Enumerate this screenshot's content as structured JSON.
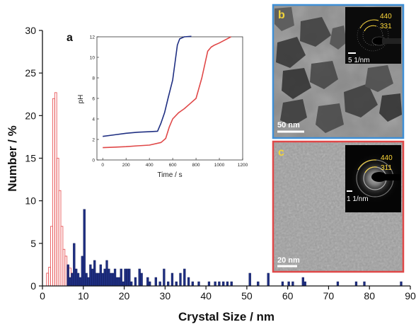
{
  "colors": {
    "red_series": "#e8585a",
    "blue_series": "#1f2f82",
    "panel_b_border": "#3f8fd6",
    "panel_c_border": "#e04848",
    "saed_rings": "#ffd93a"
  },
  "chart_data": [
    {
      "type": "bar",
      "subtype": "histogram",
      "xlabel": "Crystal Size / nm",
      "ylabel": "Number / %",
      "xlim": [
        0,
        90
      ],
      "ylim": [
        0,
        30
      ],
      "xticks": [
        "0",
        "10",
        "20",
        "30",
        "40",
        "50",
        "60",
        "70",
        "80",
        "90"
      ],
      "yticks": [
        "0",
        "5",
        "10",
        "15",
        "20",
        "25",
        "30"
      ],
      "bin_width": 0.5,
      "series": [
        {
          "style": "hollow",
          "color": "#e8585a",
          "x": [
            1.25,
            1.75,
            2.25,
            2.75,
            3.25,
            3.75,
            4.25,
            4.75,
            5.25,
            5.75,
            6.25,
            6.75,
            7.25,
            7.75,
            8.25,
            8.75,
            9.25,
            9.75
          ],
          "values": [
            1.5,
            2.2,
            7.0,
            22.0,
            22.7,
            15.0,
            11.2,
            7.0,
            4.3,
            3.5,
            2.4,
            2.1,
            1.5,
            1.3,
            1.1,
            0.5,
            0.3,
            0.2
          ]
        },
        {
          "style": "filled",
          "color": "#1f2f82",
          "x": [
            6.25,
            6.75,
            7.25,
            7.75,
            8.25,
            8.75,
            9.25,
            9.75,
            10.25,
            10.75,
            11.25,
            11.75,
            12.25,
            12.75,
            13.25,
            13.75,
            14.25,
            14.75,
            15.25,
            15.75,
            16.25,
            16.75,
            17.25,
            17.75,
            18.25,
            18.75,
            19.25,
            19.75,
            20.25,
            20.75,
            21.25,
            21.75,
            22.75,
            23.75,
            24.25,
            25.75,
            26.25,
            27.75,
            28.75,
            29.75,
            30.75,
            31.75,
            32.75,
            33.75,
            34.75,
            35.75,
            36.75,
            38.25,
            40.75,
            42.25,
            43.25,
            44.25,
            45.25,
            46.25,
            50.75,
            52.75,
            55.25,
            58.75,
            60.25,
            61.25,
            63.75,
            64.25,
            72.25,
            76.75,
            78.75,
            87.75
          ],
          "values": [
            2.5,
            1.0,
            1.5,
            5.0,
            2.0,
            1.5,
            1.0,
            3.5,
            9.0,
            1.5,
            1.0,
            2.5,
            2.0,
            3.0,
            1.5,
            1.5,
            2.5,
            1.5,
            2.0,
            3.0,
            2.0,
            1.5,
            1.5,
            2.0,
            1.0,
            1.0,
            2.0,
            0.5,
            2.0,
            2.0,
            2.0,
            0.5,
            1.0,
            2.0,
            1.5,
            1.0,
            0.5,
            1.0,
            0.5,
            2.0,
            0.5,
            1.5,
            0.5,
            1.5,
            2.0,
            1.0,
            0.5,
            0.5,
            0.5,
            0.5,
            0.5,
            0.5,
            0.5,
            0.5,
            1.5,
            0.5,
            1.5,
            0.5,
            0.5,
            0.5,
            1.0,
            0.5,
            0.5,
            0.5,
            0.5,
            0.5
          ]
        }
      ]
    },
    {
      "type": "line",
      "panel_label": "a",
      "xlabel": "Time / s",
      "ylabel": "pH",
      "xlim": [
        -50,
        1200
      ],
      "ylim": [
        0,
        12
      ],
      "xticks": [
        "0",
        "200",
        "400",
        "600",
        "800",
        "1000",
        "1200"
      ],
      "yticks": [
        "0",
        "2",
        "4",
        "6",
        "8",
        "10",
        "12"
      ],
      "series": [
        {
          "color": "#1f2f82",
          "x": [
            0,
            100,
            200,
            300,
            400,
            470,
            500,
            530,
            560,
            600,
            620,
            640,
            660,
            700,
            760
          ],
          "values": [
            2.3,
            2.45,
            2.6,
            2.7,
            2.75,
            2.8,
            3.6,
            4.6,
            6.0,
            7.8,
            9.5,
            11.2,
            11.8,
            12.0,
            12.05
          ]
        },
        {
          "color": "#e04848",
          "x": [
            0,
            100,
            200,
            300,
            400,
            500,
            540,
            570,
            600,
            650,
            700,
            750,
            800,
            850,
            900,
            930,
            960,
            1000,
            1050,
            1100
          ],
          "values": [
            1.2,
            1.25,
            1.3,
            1.38,
            1.45,
            1.7,
            2.1,
            3.2,
            4.0,
            4.6,
            5.0,
            5.5,
            6.0,
            8.0,
            10.6,
            11.0,
            11.2,
            11.4,
            11.7,
            12.0
          ]
        }
      ]
    }
  ],
  "panels": {
    "b": {
      "letter": "b",
      "scale_bar": "50 nm",
      "saed_scale": "5 1/nm",
      "ring_labels": [
        "440",
        "331"
      ]
    },
    "c": {
      "letter": "c",
      "scale_bar": "20 nm",
      "saed_scale": "1 1/nm",
      "ring_labels": [
        "440",
        "311"
      ]
    }
  }
}
